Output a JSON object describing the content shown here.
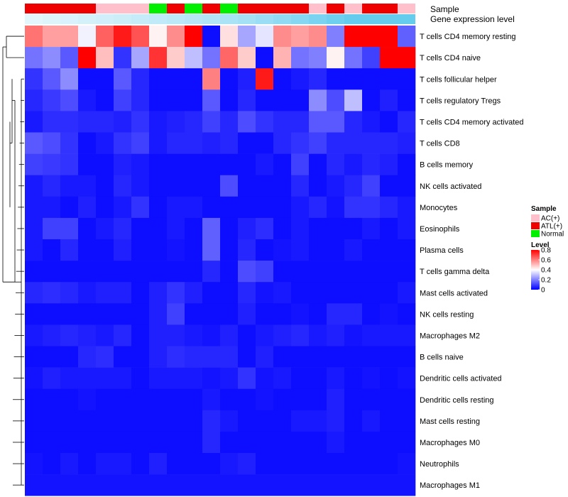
{
  "chart_data": {
    "type": "heatmap",
    "title": "",
    "annotation_labels": {
      "sample": "Sample",
      "gene": "Gene expression level"
    },
    "colors": {
      "ac": "#FFC0CB",
      "atl": "#EE0000",
      "normal": "#00EE00",
      "gene_bar": "#66CCEE",
      "low": "#0000FF",
      "mid": "#FFFFFF",
      "high": "#FF0000",
      "dendro": "#000000"
    },
    "sample_groups": [
      "ATL(+)",
      "ATL(+)",
      "ATL(+)",
      "ATL(+)",
      "AC(+)",
      "AC(+)",
      "AC(+)",
      "Normal",
      "ATL(+)",
      "Normal",
      "ATL(+)",
      "Normal",
      "ATL(+)",
      "ATL(+)",
      "ATL(+)",
      "ATL(+)",
      "AC(+)",
      "ATL(+)",
      "AC(+)",
      "ATL(+)",
      "ATL(+)",
      "AC(+)"
    ],
    "gene_levels": [
      0.02,
      0.04,
      0.06,
      0.08,
      0.1,
      0.12,
      0.14,
      0.16,
      0.18,
      0.2,
      0.22,
      0.25,
      0.28,
      0.32,
      0.36,
      0.4,
      0.45,
      0.5,
      0.55,
      0.6,
      0.65,
      0.7
    ],
    "rows": [
      "T cells CD4 memory resting",
      "T cells CD4 naive",
      "T cells follicular helper",
      "T cells regulatory  Tregs",
      "T cells CD4 memory activated",
      "T cells CD8",
      "B cells memory",
      "NK cells activated",
      "Monocytes",
      "Eosinophils",
      "Plasma cells",
      "T cells gamma delta",
      "Mast cells activated",
      "NK cells resting",
      "Macrophages M2",
      "B cells naive",
      "Dendritic cells activated",
      "Dendritic cells resting",
      "Mast cells resting",
      "Macrophages M0",
      "Neutrophils",
      "Macrophages M1"
    ],
    "values": [
      [
        0.62,
        0.55,
        0.55,
        0.38,
        0.65,
        0.76,
        0.67,
        0.42,
        0.58,
        0.8,
        0.02,
        0.45,
        0.26,
        0.36,
        0.58,
        0.55,
        0.58,
        0.2,
        0.8,
        0.8,
        0.8,
        0.15
      ],
      [
        0.18,
        0.22,
        0.14,
        0.8,
        0.5,
        0.08,
        0.26,
        0.72,
        0.48,
        0.3,
        0.18,
        0.64,
        0.48,
        0.02,
        0.52,
        0.18,
        0.2,
        0.42,
        0.18,
        0.1,
        0.8,
        0.8
      ],
      [
        0.08,
        0.14,
        0.22,
        0.02,
        0.02,
        0.14,
        0.06,
        0.02,
        0.02,
        0.02,
        0.6,
        0.02,
        0.05,
        0.76,
        0.02,
        0.04,
        0.06,
        0.02,
        0.02,
        0.02,
        0.02,
        0.02
      ],
      [
        0.06,
        0.09,
        0.12,
        0.04,
        0.02,
        0.1,
        0.06,
        0.02,
        0.02,
        0.02,
        0.14,
        0.02,
        0.06,
        0.02,
        0.02,
        0.02,
        0.22,
        0.12,
        0.3,
        0.02,
        0.05,
        0.02
      ],
      [
        0.04,
        0.07,
        0.07,
        0.06,
        0.06,
        0.05,
        0.08,
        0.04,
        0.05,
        0.06,
        0.1,
        0.06,
        0.12,
        0.08,
        0.06,
        0.06,
        0.14,
        0.14,
        0.06,
        0.04,
        0.02,
        0.06
      ],
      [
        0.14,
        0.12,
        0.08,
        0.02,
        0.04,
        0.08,
        0.1,
        0.04,
        0.06,
        0.06,
        0.05,
        0.06,
        0.02,
        0.02,
        0.06,
        0.08,
        0.1,
        0.06,
        0.06,
        0.06,
        0.06,
        0.05
      ],
      [
        0.1,
        0.09,
        0.08,
        0.02,
        0.02,
        0.05,
        0.04,
        0.02,
        0.02,
        0.02,
        0.02,
        0.02,
        0.02,
        0.04,
        0.02,
        0.1,
        0.02,
        0.06,
        0.04,
        0.06,
        0.05,
        0.02
      ],
      [
        0.04,
        0.06,
        0.04,
        0.04,
        0.02,
        0.06,
        0.04,
        0.02,
        0.02,
        0.02,
        0.02,
        0.12,
        0.02,
        0.02,
        0.02,
        0.06,
        0.02,
        0.04,
        0.06,
        0.1,
        0.02,
        0.02
      ],
      [
        0.04,
        0.04,
        0.02,
        0.05,
        0.02,
        0.04,
        0.08,
        0.02,
        0.04,
        0.04,
        0.02,
        0.02,
        0.02,
        0.02,
        0.02,
        0.04,
        0.06,
        0.03,
        0.08,
        0.08,
        0.06,
        0.04
      ],
      [
        0.04,
        0.1,
        0.1,
        0.02,
        0.04,
        0.06,
        0.02,
        0.02,
        0.04,
        0.02,
        0.15,
        0.02,
        0.05,
        0.07,
        0.02,
        0.04,
        0.02,
        0.02,
        0.02,
        0.04,
        0.02,
        0.04
      ],
      [
        0.04,
        0.02,
        0.06,
        0.02,
        0.02,
        0.05,
        0.02,
        0.02,
        0.03,
        0.02,
        0.15,
        0.02,
        0.06,
        0.02,
        0.03,
        0.04,
        0.02,
        0.02,
        0.04,
        0.02,
        0.02,
        0.02
      ],
      [
        0.02,
        0.02,
        0.02,
        0.02,
        0.02,
        0.02,
        0.02,
        0.02,
        0.02,
        0.02,
        0.06,
        0.02,
        0.12,
        0.1,
        0.02,
        0.02,
        0.02,
        0.02,
        0.02,
        0.02,
        0.02,
        0.02
      ],
      [
        0.06,
        0.07,
        0.06,
        0.04,
        0.05,
        0.05,
        0.02,
        0.05,
        0.08,
        0.05,
        0.02,
        0.02,
        0.06,
        0.03,
        0.04,
        0.02,
        0.02,
        0.02,
        0.02,
        0.02,
        0.02,
        0.04
      ],
      [
        0.02,
        0.02,
        0.02,
        0.02,
        0.02,
        0.02,
        0.02,
        0.05,
        0.1,
        0.02,
        0.02,
        0.02,
        0.05,
        0.02,
        0.02,
        0.03,
        0.02,
        0.06,
        0.06,
        0.02,
        0.03,
        0.02
      ],
      [
        0.04,
        0.05,
        0.06,
        0.05,
        0.04,
        0.06,
        0.02,
        0.05,
        0.05,
        0.04,
        0.03,
        0.05,
        0.02,
        0.04,
        0.05,
        0.06,
        0.04,
        0.05,
        0.03,
        0.04,
        0.04,
        0.04
      ],
      [
        0.02,
        0.02,
        0.02,
        0.06,
        0.07,
        0.02,
        0.02,
        0.05,
        0.07,
        0.06,
        0.06,
        0.06,
        0.02,
        0.05,
        0.02,
        0.02,
        0.02,
        0.02,
        0.02,
        0.02,
        0.02,
        0.02
      ],
      [
        0.03,
        0.05,
        0.04,
        0.04,
        0.04,
        0.04,
        0.02,
        0.04,
        0.04,
        0.04,
        0.03,
        0.04,
        0.08,
        0.03,
        0.04,
        0.02,
        0.02,
        0.04,
        0.02,
        0.03,
        0.02,
        0.03
      ],
      [
        0.02,
        0.02,
        0.02,
        0.03,
        0.02,
        0.02,
        0.02,
        0.02,
        0.02,
        0.02,
        0.04,
        0.02,
        0.02,
        0.03,
        0.02,
        0.02,
        0.02,
        0.05,
        0.02,
        0.02,
        0.02,
        0.02
      ],
      [
        0.02,
        0.02,
        0.02,
        0.02,
        0.02,
        0.02,
        0.02,
        0.02,
        0.02,
        0.02,
        0.06,
        0.04,
        0.02,
        0.02,
        0.02,
        0.04,
        0.04,
        0.05,
        0.02,
        0.04,
        0.02,
        0.02
      ],
      [
        0.02,
        0.02,
        0.02,
        0.02,
        0.02,
        0.02,
        0.02,
        0.02,
        0.02,
        0.02,
        0.06,
        0.02,
        0.02,
        0.02,
        0.02,
        0.02,
        0.02,
        0.04,
        0.02,
        0.02,
        0.02,
        0.02
      ],
      [
        0.03,
        0.02,
        0.04,
        0.02,
        0.04,
        0.04,
        0.02,
        0.05,
        0.02,
        0.02,
        0.02,
        0.04,
        0.05,
        0.02,
        0.02,
        0.02,
        0.02,
        0.02,
        0.02,
        0.02,
        0.02,
        0.03
      ],
      [
        0.03,
        0.03,
        0.03,
        0.03,
        0.03,
        0.03,
        0.03,
        0.03,
        0.03,
        0.03,
        0.03,
        0.03,
        0.03,
        0.03,
        0.03,
        0.03,
        0.03,
        0.03,
        0.03,
        0.03,
        0.03,
        0.03
      ]
    ],
    "value_range": [
      0,
      0.8
    ],
    "row_dendrogram": true,
    "legend": {
      "sample_title": "Sample",
      "sample_entries": [
        "AC(+)",
        "ATL(+)",
        "Normal"
      ],
      "level_title": "Level",
      "level_ticks": [
        "0.8",
        "0.6",
        "0.4",
        "0.2",
        "0"
      ],
      "level_tick_values": [
        0.8,
        0.6,
        0.4,
        0.2,
        0
      ],
      "placement": "right"
    }
  }
}
